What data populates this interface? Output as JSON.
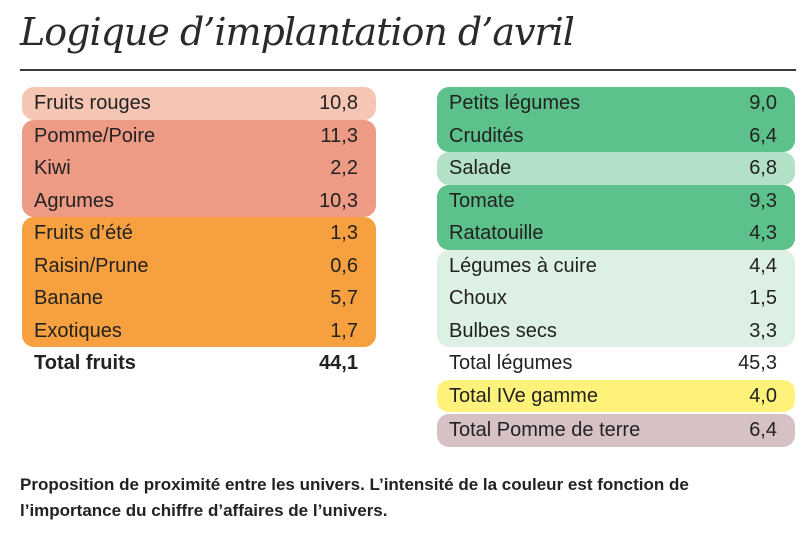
{
  "title": "Logique d’implantation d’avril",
  "colors": {
    "fruits_rouges": "#f6c6b4",
    "pomme_group": "#ee9b86",
    "orange_group": "#f7a03f",
    "green_dark": "#5cc18b",
    "green_light": "#b2e1c8",
    "green_pale": "#dcf1e3",
    "yellow": "#fff27a",
    "mauve": "#d6c2c5"
  },
  "fruits": {
    "groups": [
      {
        "color": "fruits_rouges",
        "items": [
          {
            "label": "Fruits rouges",
            "value": "10,8"
          }
        ]
      },
      {
        "color": "pomme_group",
        "items": [
          {
            "label": "Pomme/Poire",
            "value": "11,3"
          },
          {
            "label": "Kiwi",
            "value": "2,2"
          },
          {
            "label": "Agrumes",
            "value": "10,3"
          }
        ]
      },
      {
        "color": "orange_group",
        "items": [
          {
            "label": "Fruits d’été",
            "value": "1,3"
          },
          {
            "label": "Raisin/Prune",
            "value": "0,6"
          },
          {
            "label": "Banane",
            "value": "5,7"
          },
          {
            "label": "Exotiques",
            "value": "1,7"
          }
        ]
      }
    ],
    "total": {
      "label": "Total fruits",
      "value": "44,1"
    }
  },
  "legumes": {
    "groups": [
      {
        "color": "green_dark",
        "items": [
          {
            "label": "Petits légumes",
            "value": "9,0"
          },
          {
            "label": "Crudités",
            "value": "6,4"
          }
        ]
      },
      {
        "color": "green_light",
        "items": [
          {
            "label": "Salade",
            "value": "6,8"
          }
        ]
      },
      {
        "color": "green_dark",
        "items": [
          {
            "label": "Tomate",
            "value": "9,3"
          },
          {
            "label": "Ratatouille",
            "value": "4,3"
          }
        ]
      },
      {
        "color": "green_pale",
        "items": [
          {
            "label": "Légumes à cuire",
            "value": "4,4"
          },
          {
            "label": "Choux",
            "value": "1,5"
          },
          {
            "label": "Bulbes secs",
            "value": "3,3"
          }
        ]
      }
    ],
    "total": {
      "label": "Total légumes",
      "value": "45,3"
    },
    "extra": [
      {
        "color": "yellow",
        "label": "Total IVe gamme",
        "value": "4,0"
      },
      {
        "color": "mauve",
        "label": "Total Pomme de terre",
        "value": "6,4"
      }
    ]
  },
  "note": "Proposition de proximité entre les univers. L’intensité de la couleur est fonction de l’importance du chiffre d’affaires de l’univers."
}
